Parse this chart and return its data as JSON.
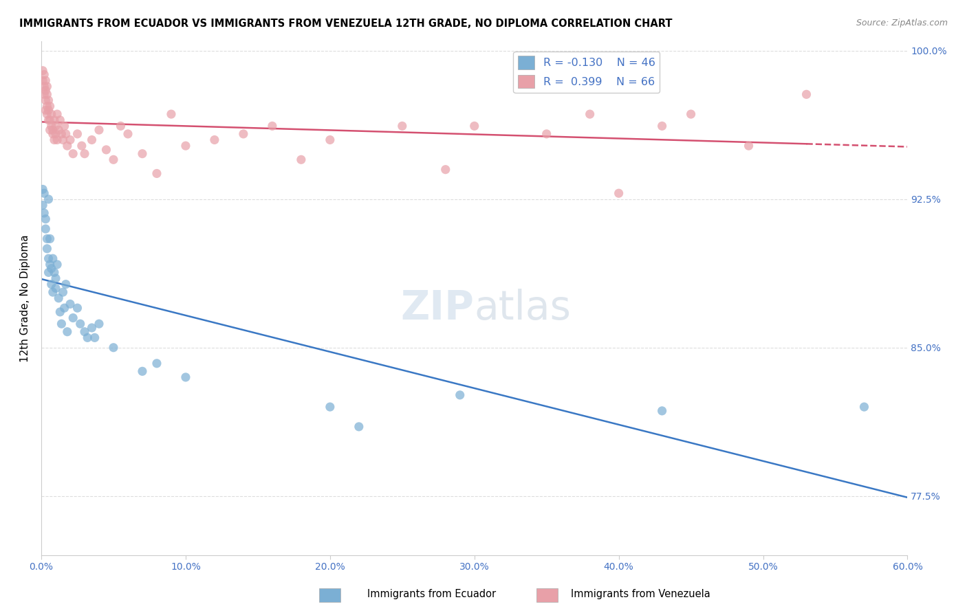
{
  "title": "IMMIGRANTS FROM ECUADOR VS IMMIGRANTS FROM VENEZUELA 12TH GRADE, NO DIPLOMA CORRELATION CHART",
  "source": "Source: ZipAtlas.com",
  "ylabel_label": "12th Grade, No Diploma",
  "legend_ecuador": "Immigrants from Ecuador",
  "legend_venezuela": "Immigrants from Venezuela",
  "R_ecuador": "-0.130",
  "N_ecuador": "46",
  "R_venezuela": "0.399",
  "N_venezuela": "66",
  "color_ecuador": "#7bafd4",
  "color_venezuela": "#e8a0a8",
  "color_ecuador_line": "#3a78c4",
  "color_venezuela_line": "#d45070",
  "watermark": "ZIPatlas",
  "xlim": [
    0.0,
    0.6
  ],
  "ylim": [
    0.745,
    1.005
  ],
  "ytick_vals": [
    0.775,
    0.85,
    0.925,
    1.0
  ],
  "ytick_labels": [
    "77.5%",
    "85.0%",
    "92.5%",
    "100.0%"
  ],
  "xtick_vals": [
    0.0,
    0.1,
    0.2,
    0.3,
    0.4,
    0.5,
    0.6
  ],
  "xtick_labels": [
    "0.0%",
    "10.0%",
    "20.0%",
    "30.0%",
    "40.0%",
    "50.0%",
    "60.0%"
  ],
  "ecuador_points": [
    [
      0.001,
      0.93
    ],
    [
      0.001,
      0.922
    ],
    [
      0.002,
      0.928
    ],
    [
      0.002,
      0.918
    ],
    [
      0.003,
      0.915
    ],
    [
      0.003,
      0.91
    ],
    [
      0.004,
      0.905
    ],
    [
      0.004,
      0.9
    ],
    [
      0.005,
      0.925
    ],
    [
      0.005,
      0.895
    ],
    [
      0.005,
      0.888
    ],
    [
      0.006,
      0.905
    ],
    [
      0.006,
      0.892
    ],
    [
      0.007,
      0.89
    ],
    [
      0.007,
      0.882
    ],
    [
      0.008,
      0.895
    ],
    [
      0.008,
      0.878
    ],
    [
      0.009,
      0.888
    ],
    [
      0.01,
      0.885
    ],
    [
      0.01,
      0.88
    ],
    [
      0.011,
      0.892
    ],
    [
      0.012,
      0.875
    ],
    [
      0.013,
      0.868
    ],
    [
      0.014,
      0.862
    ],
    [
      0.015,
      0.878
    ],
    [
      0.016,
      0.87
    ],
    [
      0.017,
      0.882
    ],
    [
      0.018,
      0.858
    ],
    [
      0.02,
      0.872
    ],
    [
      0.022,
      0.865
    ],
    [
      0.025,
      0.87
    ],
    [
      0.027,
      0.862
    ],
    [
      0.03,
      0.858
    ],
    [
      0.032,
      0.855
    ],
    [
      0.035,
      0.86
    ],
    [
      0.037,
      0.855
    ],
    [
      0.04,
      0.862
    ],
    [
      0.05,
      0.85
    ],
    [
      0.07,
      0.838
    ],
    [
      0.08,
      0.842
    ],
    [
      0.1,
      0.835
    ],
    [
      0.2,
      0.82
    ],
    [
      0.22,
      0.81
    ],
    [
      0.29,
      0.826
    ],
    [
      0.43,
      0.818
    ],
    [
      0.57,
      0.82
    ]
  ],
  "venezuela_points": [
    [
      0.001,
      0.99
    ],
    [
      0.001,
      0.985
    ],
    [
      0.002,
      0.988
    ],
    [
      0.002,
      0.982
    ],
    [
      0.002,
      0.978
    ],
    [
      0.003,
      0.985
    ],
    [
      0.003,
      0.98
    ],
    [
      0.003,
      0.975
    ],
    [
      0.003,
      0.97
    ],
    [
      0.004,
      0.982
    ],
    [
      0.004,
      0.978
    ],
    [
      0.004,
      0.972
    ],
    [
      0.004,
      0.968
    ],
    [
      0.005,
      0.975
    ],
    [
      0.005,
      0.97
    ],
    [
      0.005,
      0.965
    ],
    [
      0.006,
      0.972
    ],
    [
      0.006,
      0.965
    ],
    [
      0.006,
      0.96
    ],
    [
      0.007,
      0.968
    ],
    [
      0.007,
      0.962
    ],
    [
      0.008,
      0.96
    ],
    [
      0.008,
      0.958
    ],
    [
      0.009,
      0.965
    ],
    [
      0.009,
      0.955
    ],
    [
      0.01,
      0.962
    ],
    [
      0.01,
      0.958
    ],
    [
      0.011,
      0.968
    ],
    [
      0.011,
      0.955
    ],
    [
      0.012,
      0.96
    ],
    [
      0.013,
      0.965
    ],
    [
      0.014,
      0.958
    ],
    [
      0.015,
      0.955
    ],
    [
      0.016,
      0.962
    ],
    [
      0.017,
      0.958
    ],
    [
      0.018,
      0.952
    ],
    [
      0.02,
      0.955
    ],
    [
      0.022,
      0.948
    ],
    [
      0.025,
      0.958
    ],
    [
      0.028,
      0.952
    ],
    [
      0.03,
      0.948
    ],
    [
      0.035,
      0.955
    ],
    [
      0.04,
      0.96
    ],
    [
      0.045,
      0.95
    ],
    [
      0.05,
      0.945
    ],
    [
      0.055,
      0.962
    ],
    [
      0.06,
      0.958
    ],
    [
      0.07,
      0.948
    ],
    [
      0.08,
      0.938
    ],
    [
      0.09,
      0.968
    ],
    [
      0.1,
      0.952
    ],
    [
      0.12,
      0.955
    ],
    [
      0.14,
      0.958
    ],
    [
      0.16,
      0.962
    ],
    [
      0.18,
      0.945
    ],
    [
      0.2,
      0.955
    ],
    [
      0.25,
      0.962
    ],
    [
      0.28,
      0.94
    ],
    [
      0.3,
      0.962
    ],
    [
      0.35,
      0.958
    ],
    [
      0.38,
      0.968
    ],
    [
      0.4,
      0.928
    ],
    [
      0.43,
      0.962
    ],
    [
      0.45,
      0.968
    ],
    [
      0.49,
      0.952
    ],
    [
      0.53,
      0.978
    ]
  ]
}
